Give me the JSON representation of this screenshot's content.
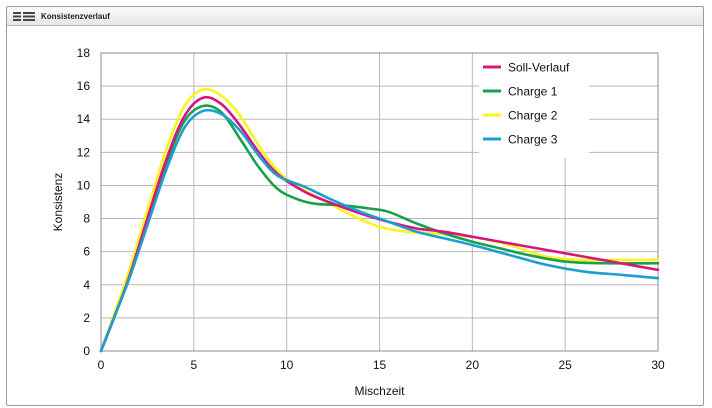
{
  "window": {
    "title": "Konsistenzverlauf",
    "icon": "list-menu-icon"
  },
  "chart_data": {
    "type": "line",
    "xlabel": "Mischzeit",
    "ylabel": "Konsistenz",
    "xlim": [
      0,
      30
    ],
    "ylim": [
      0,
      18
    ],
    "x_ticks": [
      0,
      5,
      10,
      15,
      20,
      25,
      30
    ],
    "y_ticks": [
      0,
      2,
      4,
      6,
      8,
      10,
      12,
      14,
      16,
      18
    ],
    "grid": true,
    "legend_position": "top-right",
    "series": [
      {
        "name": "Soll-Verlauf",
        "color": "#d6157e",
        "points": [
          [
            0,
            0
          ],
          [
            0.7,
            2
          ],
          [
            1.5,
            4.4
          ],
          [
            2.5,
            8
          ],
          [
            3.5,
            11.5
          ],
          [
            4.5,
            14.2
          ],
          [
            5.5,
            15.3
          ],
          [
            6.5,
            14.9
          ],
          [
            7.5,
            13.6
          ],
          [
            8.5,
            12
          ],
          [
            9.5,
            10.7
          ],
          [
            11,
            9.6
          ],
          [
            12.5,
            8.9
          ],
          [
            14,
            8.3
          ],
          [
            15.5,
            7.8
          ],
          [
            17,
            7.4
          ],
          [
            18.5,
            7.2
          ],
          [
            20,
            6.9
          ],
          [
            22,
            6.5
          ],
          [
            24,
            6.1
          ],
          [
            26,
            5.7
          ],
          [
            28,
            5.3
          ],
          [
            30,
            4.9
          ]
        ]
      },
      {
        "name": "Charge 1",
        "color": "#18a04a",
        "points": [
          [
            0,
            0
          ],
          [
            0.7,
            2
          ],
          [
            1.5,
            4.4
          ],
          [
            2.5,
            7.8
          ],
          [
            3.5,
            11.3
          ],
          [
            4.5,
            13.9
          ],
          [
            5.5,
            14.8
          ],
          [
            6.5,
            14.4
          ],
          [
            7.5,
            12.8
          ],
          [
            8.5,
            11.1
          ],
          [
            9.5,
            9.8
          ],
          [
            10.5,
            9.2
          ],
          [
            11.5,
            8.9
          ],
          [
            13,
            8.8
          ],
          [
            14.5,
            8.6
          ],
          [
            15.5,
            8.4
          ],
          [
            17,
            7.7
          ],
          [
            18.5,
            7.1
          ],
          [
            20,
            6.6
          ],
          [
            21.5,
            6.2
          ],
          [
            23,
            5.8
          ],
          [
            25,
            5.4
          ],
          [
            27,
            5.3
          ],
          [
            30,
            5.3
          ]
        ]
      },
      {
        "name": "Charge 2",
        "color": "#fff21e",
        "points": [
          [
            0,
            0
          ],
          [
            0.7,
            2.2
          ],
          [
            1.5,
            4.8
          ],
          [
            2.5,
            8.5
          ],
          [
            3.5,
            12.1
          ],
          [
            4.5,
            14.8
          ],
          [
            5.5,
            15.8
          ],
          [
            6.5,
            15.4
          ],
          [
            7.5,
            14.2
          ],
          [
            8.5,
            12.4
          ],
          [
            9.5,
            10.9
          ],
          [
            10.5,
            10
          ],
          [
            12,
            9.1
          ],
          [
            13.5,
            8.2
          ],
          [
            15,
            7.5
          ],
          [
            16.5,
            7.2
          ],
          [
            18,
            7.1
          ],
          [
            20,
            6.9
          ],
          [
            22,
            6.4
          ],
          [
            24,
            5.7
          ],
          [
            26,
            5.5
          ],
          [
            28,
            5.5
          ],
          [
            30,
            5.5
          ]
        ]
      },
      {
        "name": "Charge 3",
        "color": "#1d9ed0",
        "points": [
          [
            0,
            0
          ],
          [
            0.7,
            2
          ],
          [
            1.5,
            4.3
          ],
          [
            2.5,
            7.6
          ],
          [
            3.5,
            10.9
          ],
          [
            4.5,
            13.5
          ],
          [
            5.5,
            14.5
          ],
          [
            6.5,
            14.3
          ],
          [
            7.5,
            13.3
          ],
          [
            8.5,
            11.8
          ],
          [
            9.5,
            10.6
          ],
          [
            11,
            9.9
          ],
          [
            12.5,
            9.1
          ],
          [
            14,
            8.4
          ],
          [
            15.5,
            7.8
          ],
          [
            17,
            7.2
          ],
          [
            18.5,
            6.8
          ],
          [
            20,
            6.4
          ],
          [
            22,
            5.8
          ],
          [
            24,
            5.2
          ],
          [
            26,
            4.8
          ],
          [
            28,
            4.6
          ],
          [
            30,
            4.4
          ]
        ]
      }
    ]
  }
}
